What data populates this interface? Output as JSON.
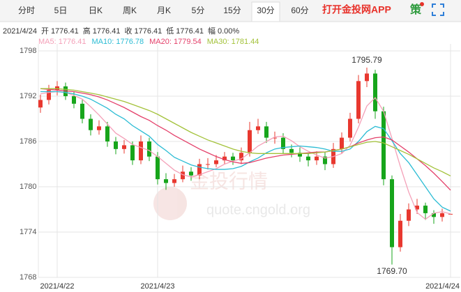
{
  "header": {
    "tabs": [
      "分时",
      "5日",
      "日K",
      "周K",
      "月K",
      "5分",
      "15分",
      "30分",
      "60分"
    ],
    "active_tab": 7,
    "app_link": "打开金投网APP",
    "icon_text": "策"
  },
  "info": {
    "date": "2021/4/24",
    "items": [
      {
        "label": "开",
        "value": "1776.41"
      },
      {
        "label": "高",
        "value": "1776.41"
      },
      {
        "label": "收",
        "value": "1776.41"
      },
      {
        "label": "低",
        "value": "1776.41"
      },
      {
        "label": "幅",
        "value": "0.00%"
      }
    ]
  },
  "watermark": {
    "title": "金投行情",
    "url": "quote.cngold.org"
  },
  "chart_data": {
    "type": "candlestick",
    "categories": [
      null,
      null,
      "2021/4/22",
      null,
      null,
      null,
      null,
      null,
      null,
      null,
      null,
      null,
      null,
      null,
      "2021/4/23",
      null,
      null,
      null,
      null,
      null,
      null,
      null,
      null,
      null,
      null,
      null,
      null,
      null,
      null,
      null,
      null,
      null,
      null,
      null,
      null,
      null,
      null,
      null,
      null,
      null,
      null,
      null,
      null,
      null,
      null,
      null,
      null,
      null,
      null,
      "2021/4/24"
    ],
    "open": [
      1790.5,
      1791.5,
      1792.8,
      1793.3,
      1792.0,
      1791.0,
      1789.0,
      1787.5,
      1788.0,
      1786.0,
      1785.0,
      1785.5,
      1783.5,
      1786.0,
      1784.0,
      1781.0,
      1780.5,
      1781.0,
      1782.0,
      1781.5,
      1783.0,
      1783.0,
      1783.5,
      1784.0,
      1783.5,
      1784.5,
      1787.5,
      1788.0,
      1786.5,
      1786.5,
      1785.0,
      1784.5,
      1784.0,
      1783.5,
      1784.0,
      1783.0,
      1785.0,
      1786.5,
      1789.0,
      1794.0,
      1795.0,
      1790.0,
      1781.0,
      1772.0,
      1775.5,
      1777.0,
      1777.5,
      1776.5,
      1776.0,
      1776.41
    ],
    "high": [
      1792.2,
      1793.5,
      1794.0,
      1793.8,
      1792.6,
      1791.5,
      1789.6,
      1788.8,
      1788.6,
      1786.6,
      1786.2,
      1786.0,
      1786.8,
      1786.5,
      1784.6,
      1781.8,
      1781.7,
      1782.8,
      1782.6,
      1783.7,
      1783.8,
      1784.2,
      1784.6,
      1784.5,
      1785.2,
      1788.6,
      1789.0,
      1788.6,
      1787.3,
      1787.1,
      1785.6,
      1785.2,
      1784.5,
      1784.7,
      1784.6,
      1785.8,
      1787.2,
      1789.8,
      1794.8,
      1795.79,
      1795.5,
      1790.6,
      1781.5,
      1776.4,
      1777.8,
      1778.4,
      1777.9,
      1776.9,
      1777.1,
      1776.41
    ],
    "low": [
      1789.8,
      1790.9,
      1792.1,
      1791.5,
      1790.4,
      1788.4,
      1786.8,
      1786.9,
      1785.3,
      1784.3,
      1784.4,
      1782.9,
      1783.0,
      1783.4,
      1780.3,
      1779.6,
      1780.0,
      1780.6,
      1780.8,
      1781.0,
      1782.3,
      1782.6,
      1783.0,
      1782.9,
      1783.0,
      1784.0,
      1787.0,
      1785.8,
      1785.7,
      1784.4,
      1783.9,
      1783.3,
      1782.7,
      1782.9,
      1782.2,
      1782.5,
      1784.4,
      1786.0,
      1788.4,
      1793.2,
      1789.0,
      1780.2,
      1769.7,
      1771.4,
      1774.8,
      1776.4,
      1775.6,
      1775.1,
      1775.4,
      1776.41
    ],
    "close": [
      1791.5,
      1792.8,
      1793.3,
      1792.0,
      1791.0,
      1789.0,
      1787.5,
      1788.0,
      1786.0,
      1785.0,
      1785.5,
      1783.5,
      1786.0,
      1784.0,
      1781.0,
      1780.5,
      1781.0,
      1782.0,
      1781.5,
      1783.0,
      1783.0,
      1783.5,
      1784.0,
      1783.5,
      1784.5,
      1787.5,
      1788.0,
      1786.5,
      1786.5,
      1785.0,
      1784.5,
      1784.0,
      1783.5,
      1784.0,
      1783.0,
      1785.0,
      1786.5,
      1789.0,
      1794.0,
      1795.0,
      1790.0,
      1781.0,
      1772.0,
      1775.5,
      1777.0,
      1777.5,
      1776.5,
      1776.0,
      1776.5,
      1776.41
    ],
    "up_color": "#e8382f",
    "down_color": "#17a51b",
    "series": [
      {
        "name": "MA5: 1776.41",
        "color": "#f4a0b8",
        "values": [
          1792.3,
          1792.5,
          1792.6,
          1792.5,
          1792.1,
          1791.6,
          1790.6,
          1789.5,
          1788.3,
          1787.1,
          1786.4,
          1785.6,
          1785.2,
          1784.8,
          1784.0,
          1783.1,
          1782.2,
          1781.6,
          1781.3,
          1781.6,
          1782.0,
          1782.4,
          1783.0,
          1783.4,
          1783.7,
          1784.5,
          1785.4,
          1786.0,
          1786.6,
          1786.7,
          1786.1,
          1785.3,
          1784.7,
          1784.2,
          1783.8,
          1784.0,
          1784.4,
          1785.5,
          1787.9,
          1790.7,
          1791.8,
          1790.0,
          1786.4,
          1782.7,
          1779.3,
          1776.6,
          1775.7,
          1776.5,
          1776.7,
          1776.41
        ]
      },
      {
        "name": "MA10: 1776.78",
        "color": "#2bbcd4",
        "values": [
          1792.6,
          1792.6,
          1792.6,
          1792.5,
          1792.3,
          1792.0,
          1791.6,
          1791.0,
          1790.4,
          1789.6,
          1789.0,
          1788.1,
          1787.4,
          1786.7,
          1785.6,
          1784.8,
          1783.9,
          1783.4,
          1782.9,
          1782.6,
          1782.4,
          1782.3,
          1782.3,
          1782.4,
          1782.7,
          1783.3,
          1783.8,
          1784.5,
          1785.0,
          1785.2,
          1785.3,
          1785.4,
          1785.3,
          1785.2,
          1785.0,
          1784.7,
          1784.7,
          1785.0,
          1786.0,
          1787.3,
          1788.0,
          1787.7,
          1786.1,
          1784.4,
          1783.2,
          1781.6,
          1780.0,
          1778.4,
          1777.3,
          1776.78
        ]
      },
      {
        "name": "MA20: 1779.54",
        "color": "#e4406a",
        "values": [
          1793.0,
          1792.9,
          1792.8,
          1792.7,
          1792.6,
          1792.4,
          1792.2,
          1791.9,
          1791.5,
          1791.0,
          1790.5,
          1789.9,
          1789.3,
          1788.8,
          1788.1,
          1787.5,
          1786.8,
          1786.2,
          1785.6,
          1785.0,
          1784.5,
          1784.0,
          1783.6,
          1783.3,
          1783.1,
          1783.2,
          1783.5,
          1783.8,
          1784.0,
          1784.2,
          1784.3,
          1784.4,
          1784.5,
          1784.6,
          1784.6,
          1784.8,
          1785.0,
          1785.3,
          1785.8,
          1786.2,
          1786.5,
          1786.6,
          1786.2,
          1785.4,
          1784.6,
          1783.7,
          1782.8,
          1781.8,
          1780.7,
          1779.54
        ]
      },
      {
        "name": "MA30: 1781.44",
        "color": "#a3c23a",
        "values": [
          1793.0,
          1793.0,
          1793.0,
          1792.9,
          1792.8,
          1792.6,
          1792.4,
          1792.2,
          1791.9,
          1791.6,
          1791.3,
          1790.9,
          1790.5,
          1790.1,
          1789.6,
          1789.0,
          1788.4,
          1787.8,
          1787.2,
          1786.7,
          1786.2,
          1785.8,
          1785.4,
          1785.0,
          1784.7,
          1784.5,
          1784.4,
          1784.4,
          1784.4,
          1784.4,
          1784.4,
          1784.4,
          1784.4,
          1784.5,
          1784.6,
          1784.8,
          1785.0,
          1785.3,
          1785.6,
          1785.9,
          1786.0,
          1785.8,
          1785.3,
          1784.8,
          1784.3,
          1783.7,
          1783.1,
          1782.5,
          1782.0,
          1781.44
        ]
      }
    ],
    "annotations": [
      {
        "label": "1795.79",
        "value": 1795.79
      },
      {
        "label": "1769.70",
        "value": 1769.7
      }
    ],
    "ylim": [
      1768,
      1798
    ],
    "yticks": [
      1768,
      1774,
      1780,
      1786,
      1792,
      1798
    ],
    "grid": true
  }
}
